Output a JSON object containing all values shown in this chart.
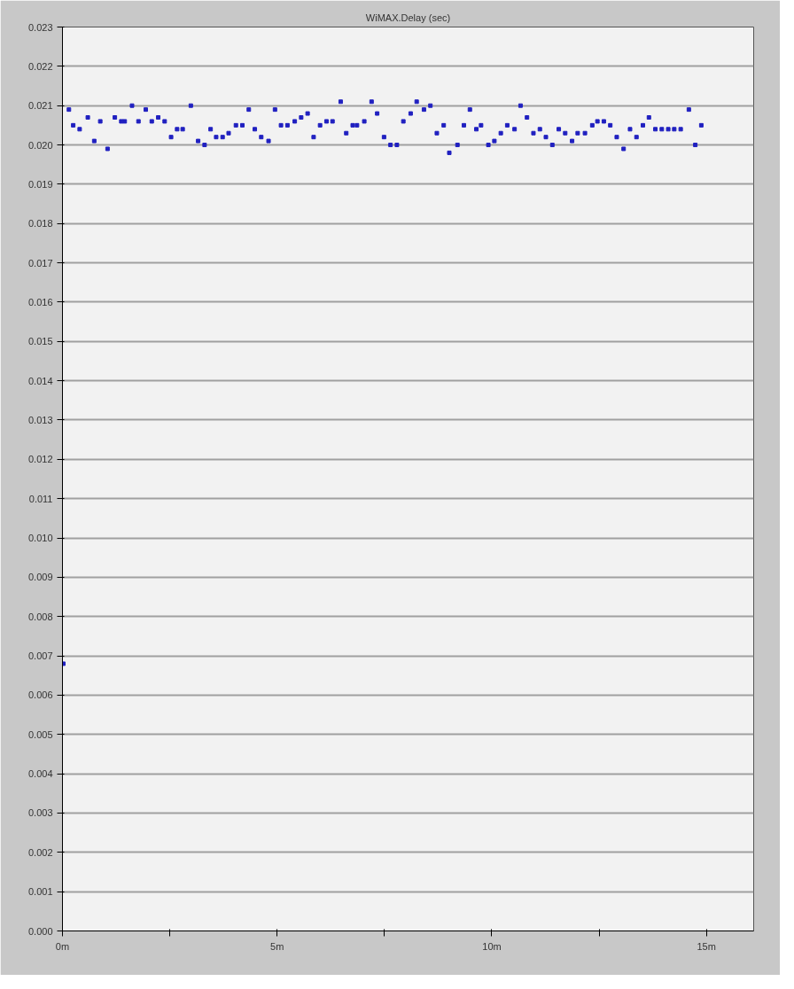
{
  "chart_data": {
    "type": "scatter",
    "title": "WiMAX.Delay (sec)",
    "x": [
      0.02,
      0.15,
      0.25,
      0.4,
      0.59,
      0.74,
      0.88,
      1.05,
      1.22,
      1.37,
      1.45,
      1.62,
      1.77,
      1.94,
      2.08,
      2.23,
      2.38,
      2.53,
      2.67,
      2.8,
      2.99,
      3.16,
      3.31,
      3.45,
      3.58,
      3.73,
      3.87,
      4.04,
      4.19,
      4.34,
      4.48,
      4.63,
      4.8,
      4.95,
      5.09,
      5.24,
      5.41,
      5.56,
      5.71,
      5.85,
      6.0,
      6.15,
      6.29,
      6.48,
      6.61,
      6.76,
      6.86,
      7.03,
      7.2,
      7.33,
      7.49,
      7.64,
      7.79,
      7.94,
      8.11,
      8.25,
      8.42,
      8.57,
      8.72,
      8.88,
      9.01,
      9.2,
      9.35,
      9.49,
      9.64,
      9.75,
      9.92,
      10.06,
      10.21,
      10.36,
      10.53,
      10.67,
      10.82,
      10.97,
      11.12,
      11.26,
      11.41,
      11.56,
      11.71,
      11.87,
      12.0,
      12.17,
      12.34,
      12.46,
      12.61,
      12.76,
      12.91,
      13.07,
      13.22,
      13.37,
      13.52,
      13.66,
      13.81,
      13.96,
      14.11,
      14.25,
      14.4,
      14.59,
      14.74,
      14.88
    ],
    "series": [
      {
        "color": "#2020c0",
        "values": [
          0.0068,
          0.0209,
          0.0205,
          0.0204,
          0.0207,
          0.0201,
          0.0206,
          0.0199,
          0.0207,
          0.0206,
          0.0206,
          0.021,
          0.0206,
          0.0209,
          0.0206,
          0.0207,
          0.0206,
          0.0202,
          0.0204,
          0.0204,
          0.021,
          0.0201,
          0.02,
          0.0204,
          0.0202,
          0.0202,
          0.0203,
          0.0205,
          0.0205,
          0.0209,
          0.0204,
          0.0202,
          0.0201,
          0.0209,
          0.0205,
          0.0205,
          0.0206,
          0.0207,
          0.0208,
          0.0202,
          0.0205,
          0.0206,
          0.0206,
          0.0211,
          0.0203,
          0.0205,
          0.0205,
          0.0206,
          0.0211,
          0.0208,
          0.0202,
          0.02,
          0.02,
          0.0206,
          0.0208,
          0.0211,
          0.0209,
          0.021,
          0.0203,
          0.0205,
          0.0198,
          0.02,
          0.0205,
          0.0209,
          0.0204,
          0.0205,
          0.02,
          0.0201,
          0.0203,
          0.0205,
          0.0204,
          0.021,
          0.0207,
          0.0203,
          0.0204,
          0.0202,
          0.02,
          0.0204,
          0.0203,
          0.0201,
          0.0203,
          0.0203,
          0.0205,
          0.0206,
          0.0206,
          0.0205,
          0.0202,
          0.0199,
          0.0204,
          0.0202,
          0.0205,
          0.0207,
          0.0204,
          0.0204,
          0.0204,
          0.0204,
          0.0204,
          0.0209,
          0.02,
          0.0205
        ]
      }
    ],
    "xlim": [
      0,
      16.1
    ],
    "xticks": [
      {
        "value": 0,
        "label": "0m"
      },
      {
        "value": 2.5,
        "label": null
      },
      {
        "value": 5,
        "label": "5m"
      },
      {
        "value": 7.5,
        "label": null
      },
      {
        "value": 10,
        "label": "10m"
      },
      {
        "value": 12.5,
        "label": null
      },
      {
        "value": 15,
        "label": "15m"
      }
    ],
    "ylim": [
      0,
      0.023
    ],
    "yticks": [
      {
        "value": 0,
        "label": "0.000"
      },
      {
        "value": 0.001,
        "label": "0.001"
      },
      {
        "value": 0.002,
        "label": "0.002"
      },
      {
        "value": 0.003,
        "label": "0.003"
      },
      {
        "value": 0.004,
        "label": "0.004"
      },
      {
        "value": 0.005,
        "label": "0.005"
      },
      {
        "value": 0.006,
        "label": "0.006"
      },
      {
        "value": 0.007,
        "label": "0.007"
      },
      {
        "value": 0.008,
        "label": "0.008"
      },
      {
        "value": 0.009,
        "label": "0.009"
      },
      {
        "value": 0.01,
        "label": "0.010"
      },
      {
        "value": 0.011,
        "label": "0.011"
      },
      {
        "value": 0.012,
        "label": "0.012"
      },
      {
        "value": 0.013,
        "label": "0.013"
      },
      {
        "value": 0.014,
        "label": "0.014"
      },
      {
        "value": 0.015,
        "label": "0.015"
      },
      {
        "value": 0.016,
        "label": "0.016"
      },
      {
        "value": 0.017,
        "label": "0.017"
      },
      {
        "value": 0.018,
        "label": "0.018"
      },
      {
        "value": 0.019,
        "label": "0.019"
      },
      {
        "value": 0.02,
        "label": "0.020"
      },
      {
        "value": 0.021,
        "label": "0.021"
      },
      {
        "value": 0.022,
        "label": "0.022"
      },
      {
        "value": 0.023,
        "label": "0.023"
      }
    ],
    "grid": "y",
    "marker": "square"
  }
}
